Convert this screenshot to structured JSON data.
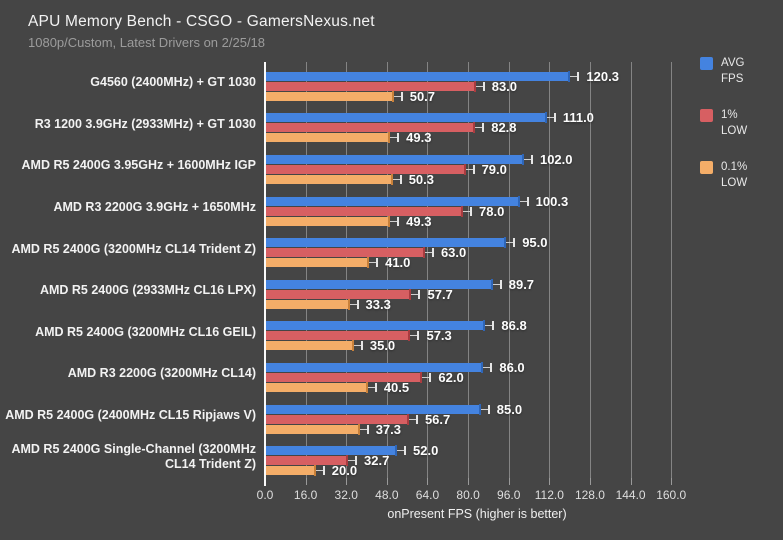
{
  "header": {
    "title": "APU Memory Bench - CSGO - GamersNexus.net",
    "subtitle": "1080p/Custom, Latest Drivers on 2/25/18"
  },
  "colors": {
    "background": "#454545",
    "gridline": "#848484",
    "axis_line": "#fafafa",
    "avg_fps": "#4483e0",
    "avg_fps_dark": "#2e66b8",
    "low_1pct": "#d75f62",
    "low_1pct_dark": "#a93c40",
    "low_01pct": "#f4ad68",
    "low_01pct_dark": "#c9813a"
  },
  "chart_data": {
    "type": "bar",
    "orientation": "horizontal",
    "title": "APU Memory Bench - CSGO - GamersNexus.net",
    "subtitle": "1080p/Custom, Latest Drivers on 2/25/18",
    "xlabel": "onPresent FPS (higher is better)",
    "xlim": [
      0,
      160
    ],
    "xticks": [
      0,
      16,
      32,
      48,
      64,
      80,
      96,
      112,
      128,
      144,
      160
    ],
    "grid": true,
    "legend_position": "right",
    "value_labels": true,
    "error_whiskers": true,
    "categories": [
      "G4560 (2400MHz) + GT 1030",
      "R3 1200 3.9GHz (2933MHz) + GT 1030",
      "AMD R5 2400G 3.95GHz + 1600MHz IGP",
      "AMD R3 2200G 3.9GHz + 1650MHz",
      "AMD R5 2400G (3200MHz CL14 Trident Z)",
      "AMD R5 2400G (2933MHz CL16 LPX)",
      "AMD R5 2400G (3200MHz CL16 GEIL)",
      "AMD R3 2200G (3200MHz CL14)",
      "AMD R5 2400G (2400MHz CL15 Ripjaws V)",
      "AMD R5 2400G Single-Channel (3200MHz CL14 Trident Z)"
    ],
    "series": [
      {
        "name": "AVG FPS",
        "color": "#4483e0",
        "color_dark": "#2e66b8",
        "values": [
          120.3,
          111.0,
          102.0,
          100.3,
          95.0,
          89.7,
          86.8,
          86.0,
          85.0,
          52.0
        ]
      },
      {
        "name": "1% LOW",
        "color": "#d75f62",
        "color_dark": "#a93c40",
        "values": [
          83.0,
          82.8,
          79.0,
          78.0,
          63.0,
          57.7,
          57.3,
          62.0,
          56.7,
          32.7
        ]
      },
      {
        "name": "0.1% LOW",
        "color": "#f4ad68",
        "color_dark": "#c9813a",
        "values": [
          50.7,
          49.3,
          50.3,
          49.3,
          41.0,
          33.3,
          35.0,
          40.5,
          37.3,
          20.0
        ]
      }
    ]
  }
}
